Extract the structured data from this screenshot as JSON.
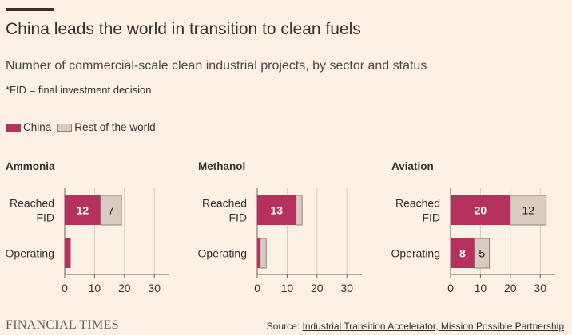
{
  "header": {
    "title": "China leads the world in transition to clean fuels",
    "subtitle": "Number of commercial-scale clean industrial projects, by sector and status",
    "note": "*FID = final investment decision"
  },
  "legend": {
    "items": [
      {
        "label": "China",
        "color": "#b5325f"
      },
      {
        "label": "Rest of the world",
        "color": "#d9cbc0"
      }
    ]
  },
  "colors": {
    "china": "#b5325f",
    "rest": "#d9cbc0",
    "grid": "#d7cbc0",
    "axis": "#66605c",
    "text": "#33302e"
  },
  "chart_data": [
    {
      "type": "bar",
      "title": "Ammonia",
      "categories": [
        "Reached\nFID",
        "Operating"
      ],
      "series": [
        {
          "name": "China",
          "values": [
            12,
            2
          ]
        },
        {
          "name": "Rest of the world",
          "values": [
            7,
            0
          ]
        }
      ],
      "data_labels": [
        [
          "12",
          "7"
        ],
        [
          "",
          ""
        ]
      ],
      "xlim": [
        0,
        35
      ],
      "xticks": [
        0,
        10,
        20,
        30
      ],
      "grid": true,
      "legend": "top-left"
    },
    {
      "type": "bar",
      "title": "Methanol",
      "categories": [
        "Reached\nFID",
        "Operating"
      ],
      "series": [
        {
          "name": "China",
          "values": [
            13,
            1
          ]
        },
        {
          "name": "Rest of the world",
          "values": [
            2,
            2
          ]
        }
      ],
      "data_labels": [
        [
          "13",
          ""
        ],
        [
          "",
          ""
        ]
      ],
      "xlim": [
        0,
        35
      ],
      "xticks": [
        0,
        10,
        20,
        30
      ],
      "grid": true,
      "legend": "top-left"
    },
    {
      "type": "bar",
      "title": "Aviation",
      "categories": [
        "Reached\nFID",
        "Operating"
      ],
      "series": [
        {
          "name": "China",
          "values": [
            20,
            8
          ]
        },
        {
          "name": "Rest of the world",
          "values": [
            12,
            5
          ]
        }
      ],
      "data_labels": [
        [
          "20",
          "12"
        ],
        [
          "8",
          "5"
        ]
      ],
      "xlim": [
        0,
        35
      ],
      "xticks": [
        0,
        10,
        20,
        30
      ],
      "grid": true,
      "legend": "top-left"
    }
  ],
  "footer": {
    "brand": "FINANCIAL TIMES",
    "source_prefix": "Source: ",
    "source_text": "Industrial Transition Accelerator, Mission Possible Partnership"
  }
}
